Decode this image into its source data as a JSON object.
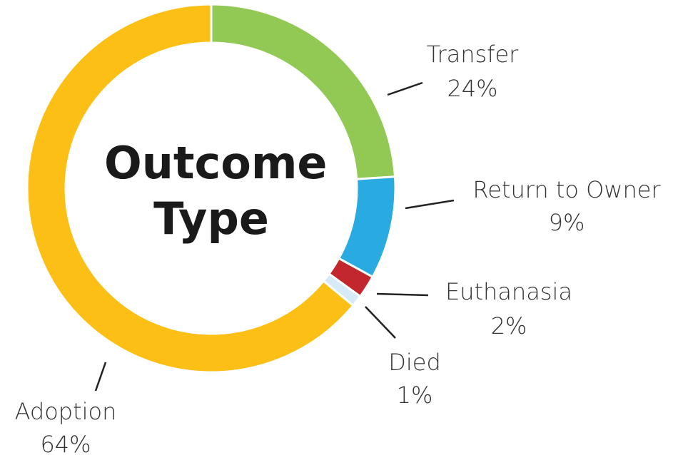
{
  "chart_data": {
    "type": "donut",
    "title": "Outcome Type",
    "categories": [
      "Transfer",
      "Return to Owner",
      "Euthanasia",
      "Died",
      "Adoption"
    ],
    "values": [
      24,
      9,
      2,
      1,
      64
    ],
    "value_labels": [
      "24%",
      "9%",
      "2%",
      "1%",
      "64%"
    ],
    "colors": [
      "#92c954",
      "#29abe2",
      "#c1272d",
      "#d6eaf8",
      "#fbbf15"
    ]
  }
}
